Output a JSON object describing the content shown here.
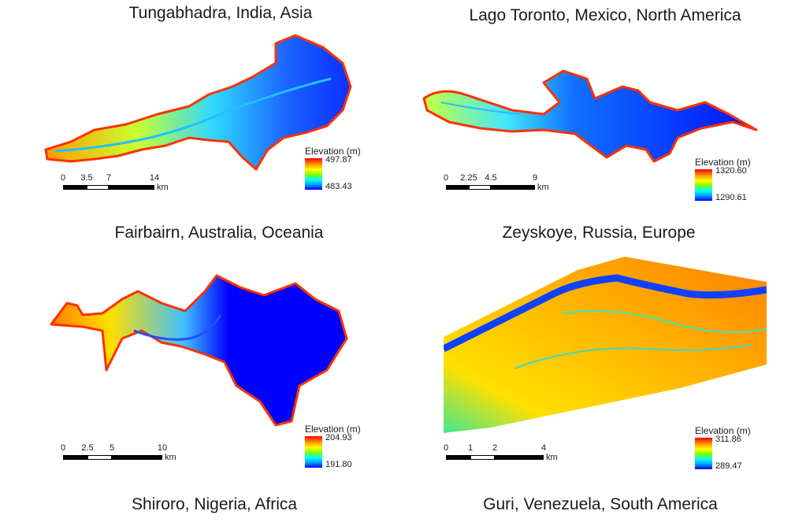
{
  "panels": [
    {
      "name": "Tungabhadra, India, Asia",
      "legend": {
        "title": "Elevation (m)",
        "max": "497.87",
        "min": "483.43"
      },
      "scale": {
        "ticks": [
          "0",
          "3.5",
          "7",
          "14"
        ],
        "unit": "km"
      }
    },
    {
      "name": "Lago Toronto, Mexico, North America",
      "legend": {
        "title": "Elevation (m)",
        "max": "1320.60",
        "min": "1290.61"
      },
      "scale": {
        "ticks": [
          "0",
          "2.25",
          "4.5",
          "9"
        ],
        "unit": "km"
      }
    },
    {
      "name": "Shiroro, Nigeria, Africa",
      "legend": {
        "title": "Elevation (m)",
        "max": "204.93",
        "min": "191.80"
      },
      "scale": {
        "ticks": [
          "0",
          "2.5",
          "5",
          "10"
        ],
        "unit": "km"
      }
    },
    {
      "name": "Guri, Venezuela, South America",
      "legend": {
        "title": "Elevation (m)",
        "max": "311.86",
        "min": "289.47"
      },
      "scale": {
        "ticks": [
          "0",
          "1",
          "2",
          "4"
        ],
        "unit": "km"
      }
    }
  ],
  "labels": {
    "fairbairn": "Fairbairn, Australia, Oceania",
    "zeyskoye": "Zeyskoye, Russia, Europe"
  },
  "colors": {
    "deep": "#0000ff",
    "mid": "#00c8ff",
    "shallow": "#ffff00",
    "shore": "#ff0000"
  }
}
